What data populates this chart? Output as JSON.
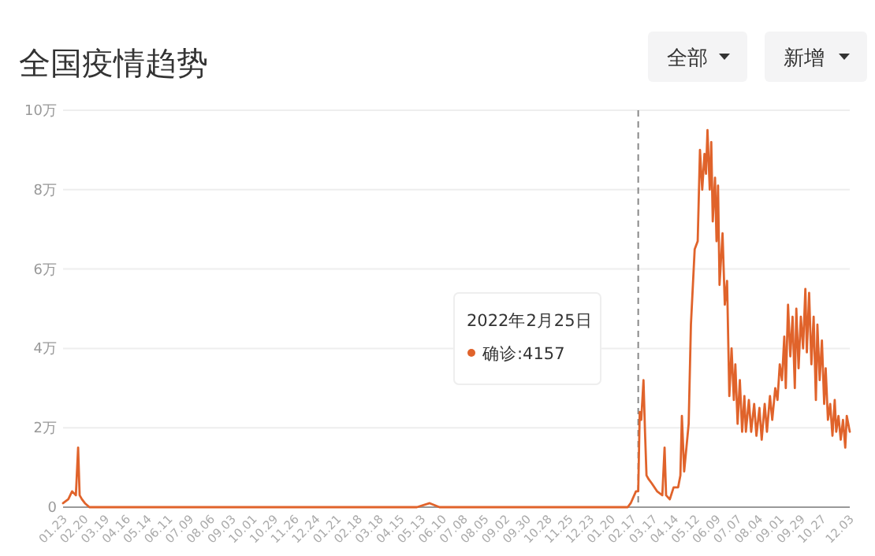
{
  "chart_data": {
    "type": "line",
    "title": "全国疫情趋势",
    "annotations": [
      "全部",
      "新增",
      "2022年2月25日",
      "确诊:4157"
    ],
    "x": [
      "2020-01-23",
      "2020-01-30",
      "2020-02-04",
      "2020-02-09",
      "2020-02-12",
      "2020-02-14",
      "2020-02-17",
      "2020-02-21",
      "2020-02-27",
      "2020-03-19",
      "2020-05-02",
      "2020-07-31",
      "2020-11-18",
      "2021-02-26",
      "2021-05-07",
      "2021-05-24",
      "2021-06-06",
      "2021-09-14",
      "2021-12-23",
      "2022-02-01",
      "2022-02-11",
      "2022-02-15",
      "2022-02-22",
      "2022-02-25",
      "2022-02-27",
      "2022-03-01",
      "2022-03-04",
      "2022-03-06",
      "2022-03-08",
      "2022-03-11",
      "2022-03-15",
      "2022-03-22",
      "2022-03-29",
      "2022-04-01",
      "2022-04-03",
      "2022-04-08",
      "2022-04-13",
      "2022-04-19",
      "2022-04-22",
      "2022-04-24",
      "2022-04-27",
      "2022-05-03",
      "2022-05-06",
      "2022-05-11",
      "2022-05-15",
      "2022-05-18",
      "2022-05-21",
      "2022-05-24",
      "2022-05-26",
      "2022-05-28",
      "2022-05-31",
      "2022-06-02",
      "2022-06-04",
      "2022-06-07",
      "2022-06-09",
      "2022-06-11",
      "2022-06-13",
      "2022-06-17",
      "2022-06-20",
      "2022-06-23",
      "2022-06-26",
      "2022-06-29",
      "2022-07-02",
      "2022-07-04",
      "2022-07-07",
      "2022-07-10",
      "2022-07-13",
      "2022-07-16",
      "2022-07-18",
      "2022-07-22",
      "2022-07-25",
      "2022-07-29",
      "2022-08-01",
      "2022-08-05",
      "2022-08-08",
      "2022-08-12",
      "2022-08-15",
      "2022-08-19",
      "2022-08-22",
      "2022-08-26",
      "2022-08-29",
      "2022-09-01",
      "2022-09-04",
      "2022-09-07",
      "2022-09-09",
      "2022-09-12",
      "2022-09-15",
      "2022-09-18",
      "2022-09-21",
      "2022-09-23",
      "2022-09-26",
      "2022-09-29",
      "2022-10-02",
      "2022-10-05",
      "2022-10-07",
      "2022-10-10",
      "2022-10-13",
      "2022-10-16",
      "2022-10-19",
      "2022-10-21",
      "2022-10-24",
      "2022-10-27",
      "2022-10-30",
      "2022-11-01",
      "2022-11-04",
      "2022-11-07",
      "2022-11-10",
      "2022-11-13",
      "2022-11-15",
      "2022-11-18",
      "2022-11-21",
      "2022-11-24",
      "2022-11-27",
      "2022-11-29",
      "2022-12-03"
    ],
    "series": [
      {
        "color": "#e0632b",
        "values": [
          0.1,
          0.2,
          0.4,
          0.3,
          1.5,
          0.3,
          0.2,
          0.1,
          0,
          0,
          0,
          0,
          0,
          0,
          0,
          0.1,
          0,
          0,
          0,
          0,
          0,
          0.1,
          0.4,
          0.4,
          2.4,
          2.2,
          3.2,
          1.9,
          0.8,
          0.7,
          0.6,
          0.4,
          0.3,
          1.5,
          0.3,
          0.2,
          0.5,
          0.5,
          0.8,
          2.3,
          0.9,
          2.1,
          4.6,
          6.5,
          6.7,
          9.0,
          8.0,
          8.9,
          8.4,
          9.5,
          8.0,
          9.2,
          7.2,
          8.3,
          6.7,
          8.1,
          5.6,
          6.9,
          5.1,
          5.7,
          2.8,
          4.0,
          2.7,
          3.6,
          2.1,
          3.2,
          1.9,
          2.8,
          1.9,
          2.7,
          1.9,
          2.6,
          1.8,
          2.5,
          1.7,
          2.6,
          1.9,
          2.8,
          2.2,
          3.0,
          2.7,
          3.6,
          3.2,
          4.3,
          3.0,
          5.1,
          3.8,
          4.8,
          3.0,
          5.0,
          3.5,
          4.8,
          4.0,
          5.5,
          3.9,
          5.4,
          3.6,
          4.8,
          2.7,
          4.6,
          3.2,
          4.2,
          2.6,
          3.5,
          2.2,
          2.6,
          1.8,
          2.7,
          1.9,
          2.3,
          1.7,
          2.2,
          1.5,
          2.3,
          1.9
        ]
      }
    ],
    "xlim": [
      "2020-01-23",
      "2022-12-03"
    ],
    "xticks": [
      {
        "value": "2020-01-23",
        "label": "01.23"
      },
      {
        "value": "2020-02-20",
        "label": "02.20"
      },
      {
        "value": "2020-03-19",
        "label": "03.19"
      },
      {
        "value": "2020-04-16",
        "label": "04.16"
      },
      {
        "value": "2020-05-14",
        "label": "05.14"
      },
      {
        "value": "2020-06-11",
        "label": "06.11"
      },
      {
        "value": "2020-07-09",
        "label": "07.09"
      },
      {
        "value": "2020-08-06",
        "label": "08.06"
      },
      {
        "value": "2020-09-03",
        "label": "09.03"
      },
      {
        "value": "2020-10-01",
        "label": "10.01"
      },
      {
        "value": "2020-10-29",
        "label": "10.29"
      },
      {
        "value": "2020-11-26",
        "label": "11.26"
      },
      {
        "value": "2020-12-24",
        "label": "12.24"
      },
      {
        "value": "2021-01-21",
        "label": "01.21"
      },
      {
        "value": "2021-02-18",
        "label": "02.18"
      },
      {
        "value": "2021-03-18",
        "label": "03.18"
      },
      {
        "value": "2021-04-15",
        "label": "04.15"
      },
      {
        "value": "2021-05-13",
        "label": "05.13"
      },
      {
        "value": "2021-06-10",
        "label": "06.10"
      },
      {
        "value": "2021-07-08",
        "label": "07.08"
      },
      {
        "value": "2021-08-05",
        "label": "08.05"
      },
      {
        "value": "2021-09-02",
        "label": "09.02"
      },
      {
        "value": "2021-09-30",
        "label": "09.30"
      },
      {
        "value": "2021-10-28",
        "label": "10.28"
      },
      {
        "value": "2021-11-25",
        "label": "11.25"
      },
      {
        "value": "2021-12-23",
        "label": "12.23"
      },
      {
        "value": "2022-01-20",
        "label": "01.20"
      },
      {
        "value": "2022-02-17",
        "label": "02.17"
      },
      {
        "value": "2022-03-17",
        "label": "03.17"
      },
      {
        "value": "2022-04-14",
        "label": "04.14"
      },
      {
        "value": "2022-05-12",
        "label": "05.12"
      },
      {
        "value": "2022-06-09",
        "label": "06.09"
      },
      {
        "value": "2022-07-07",
        "label": "07.07"
      },
      {
        "value": "2022-08-04",
        "label": "08.04"
      },
      {
        "value": "2022-09-01",
        "label": "09.01"
      },
      {
        "value": "2022-09-29",
        "label": "09.29"
      },
      {
        "value": "2022-10-27",
        "label": "10.27"
      },
      {
        "value": "2022-12-03",
        "label": "12.03"
      }
    ],
    "ylim": [
      0,
      10
    ],
    "yticks": [
      0,
      {
        "value": 2,
        "label": "2万"
      },
      {
        "value": 4,
        "label": "4万"
      },
      {
        "value": 6,
        "label": "6万"
      },
      {
        "value": 8,
        "label": "8万"
      },
      {
        "value": 10,
        "label": "10万"
      }
    ],
    "ref_lines": [
      {
        "axis": "x",
        "value": "2022-02-25",
        "color": "#888888",
        "line_style": "dashed"
      }
    ],
    "grid": "y",
    "marker": "none",
    "line_style": "solid"
  }
}
